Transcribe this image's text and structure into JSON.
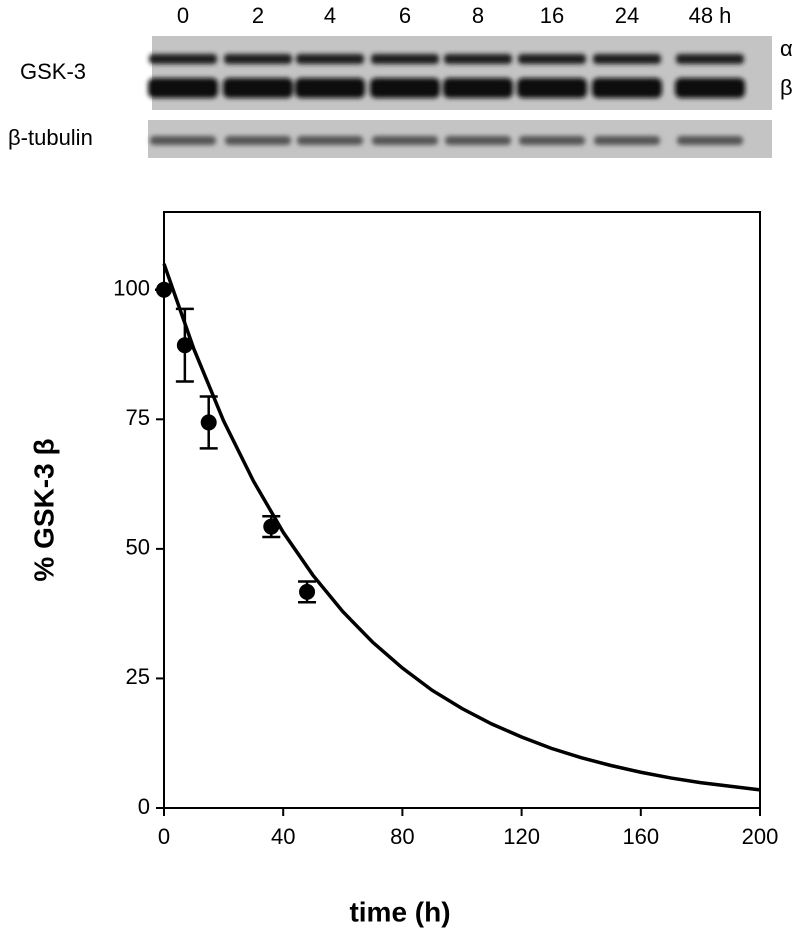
{
  "blot": {
    "lanes": [
      "0",
      "2",
      "4",
      "6",
      "8",
      "16",
      "24",
      "48 h"
    ],
    "gsk_label": "GSK-3",
    "tubulin_label": "β-tubulin",
    "alpha": "α",
    "beta": "β"
  },
  "chart_data": {
    "type": "scatter",
    "xlabel": "time (h)",
    "ylabel": "% GSK-3 β",
    "x": [
      0,
      7,
      15,
      36,
      48
    ],
    "values": [
      100,
      89.3,
      74.4,
      54.3,
      41.7
    ],
    "errors": [
      0,
      7,
      5,
      2,
      2
    ],
    "color": "#000000",
    "fit": {
      "x": [
        0,
        10,
        20,
        30,
        40,
        50,
        60,
        70,
        80,
        90,
        100,
        110,
        120,
        130,
        140,
        150,
        160,
        170,
        180,
        190,
        200
      ],
      "values": [
        105,
        88.6,
        74.7,
        63.1,
        53.2,
        44.9,
        37.9,
        32.0,
        27.0,
        22.7,
        19.2,
        16.2,
        13.7,
        11.5,
        9.7,
        8.2,
        6.9,
        5.8,
        4.9,
        4.2,
        3.5
      ]
    },
    "xlim": [
      0,
      200
    ],
    "xticks": [
      0,
      40,
      80,
      120,
      160,
      200
    ],
    "ylim": [
      0,
      115
    ],
    "yticks": [
      0,
      25,
      50,
      75,
      100
    ]
  }
}
